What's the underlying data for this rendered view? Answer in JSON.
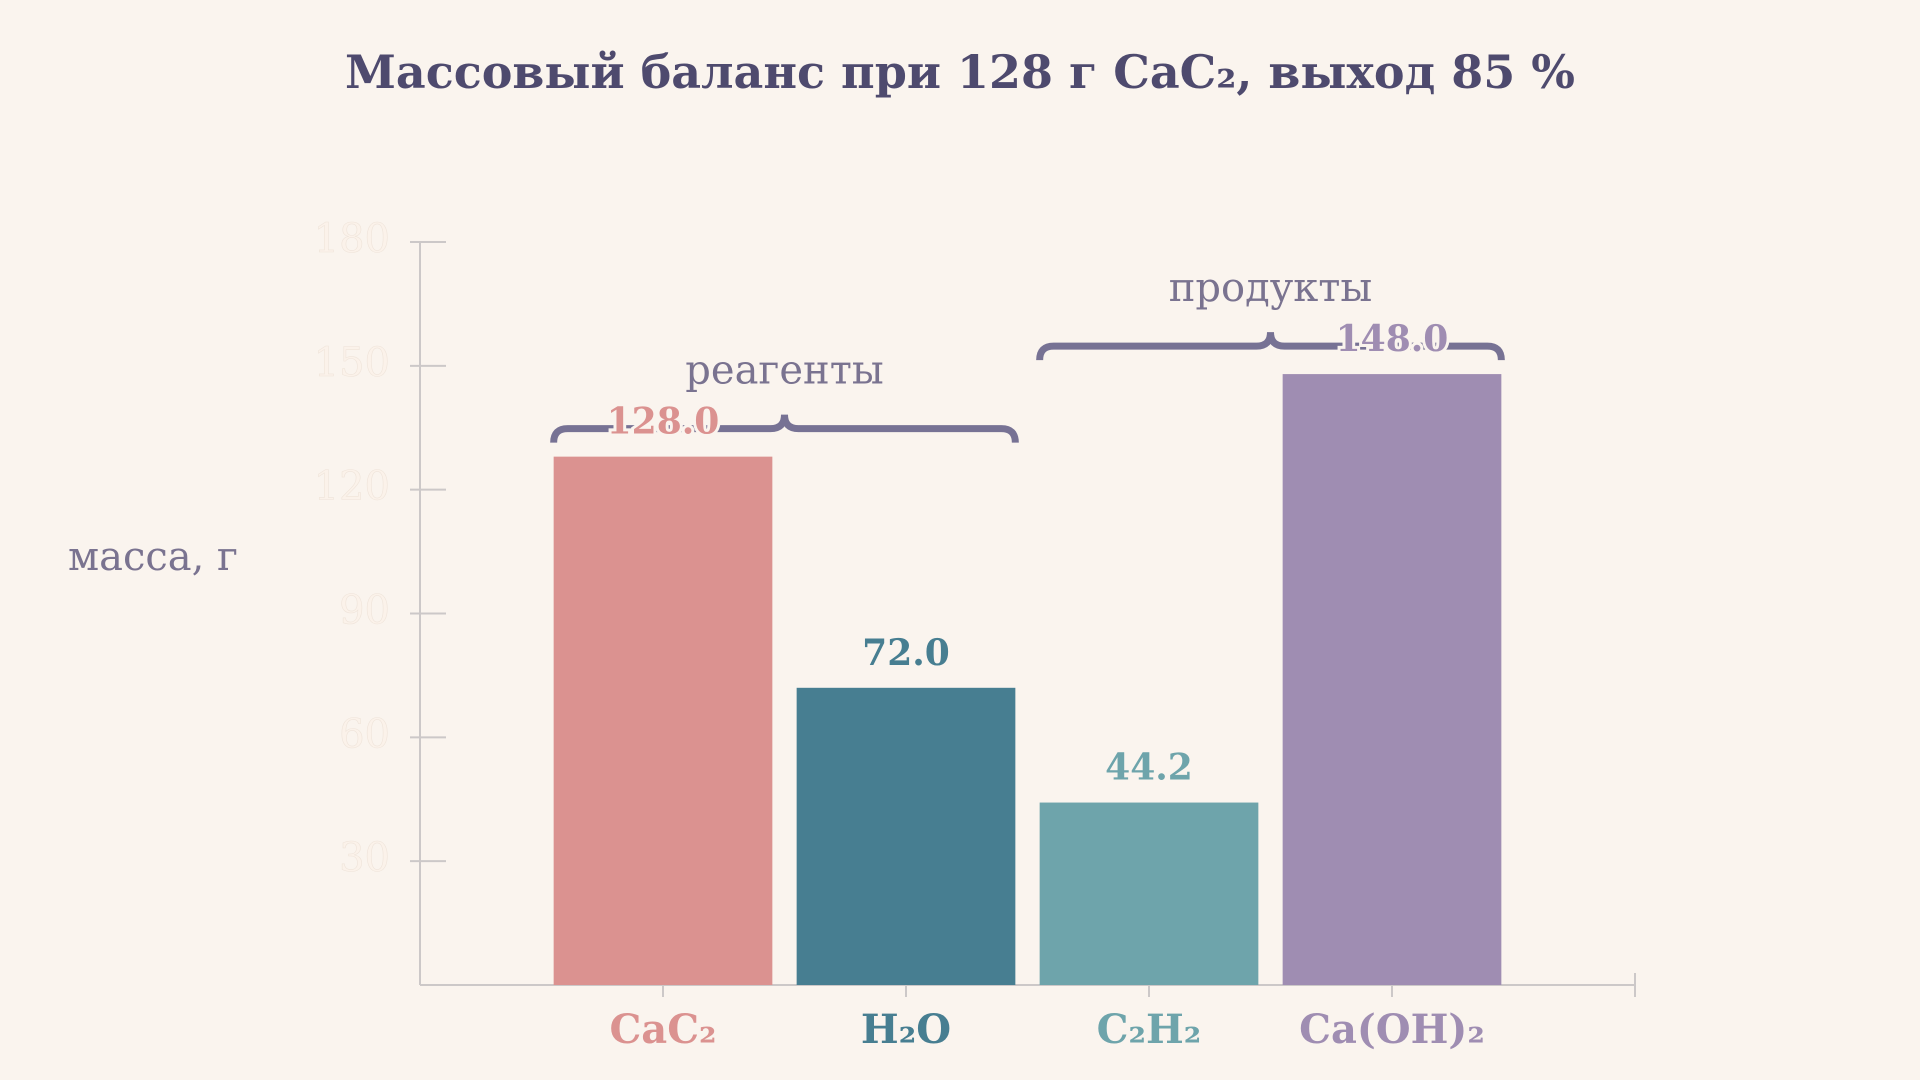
{
  "chart_data": {
    "type": "bar",
    "title": "Массовый баланс при 128 г CaC₂, выход 85 %",
    "y_label": "масса, г",
    "categories": [
      "CaC₂",
      "H₂O",
      "C₂H₂",
      "Ca(OH)₂"
    ],
    "values": [
      128.0,
      72.0,
      44.2,
      148.0
    ],
    "value_labels": [
      "128.0",
      "72.0",
      "44.2",
      "148.0"
    ],
    "colors": [
      "#db9290",
      "#477e91",
      "#6ea4ab",
      "#9f8db2"
    ],
    "ylim": [
      0,
      180
    ],
    "yticks": [
      30,
      60,
      90,
      120,
      150,
      180
    ],
    "annotations": [
      "реагенты",
      "продукты"
    ]
  }
}
